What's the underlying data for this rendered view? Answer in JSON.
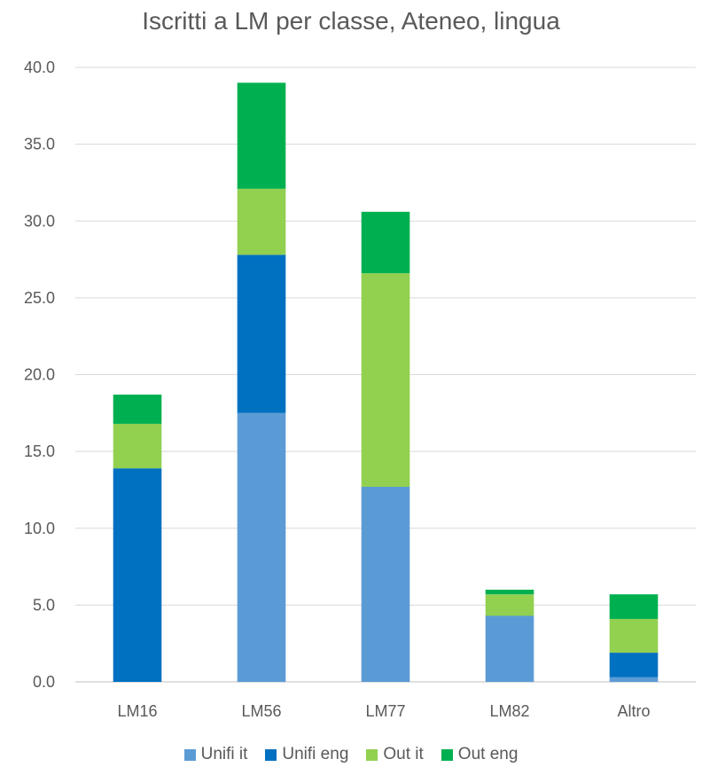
{
  "chart_data": {
    "type": "bar",
    "stacked": true,
    "title": "Iscritti a LM per classe, Ateneo, lingua",
    "xlabel": "",
    "ylabel": "",
    "ylim": [
      0,
      40
    ],
    "yticks": [
      "0.0",
      "5.0",
      "10.0",
      "15.0",
      "20.0",
      "25.0",
      "30.0",
      "35.0",
      "40.0"
    ],
    "grid": true,
    "legend_position": "bottom",
    "categories": [
      "LM16",
      "LM56",
      "LM77",
      "LM82",
      "Altro"
    ],
    "series": [
      {
        "name": "Unifi it",
        "color": "#5b9bd5",
        "values": [
          0.0,
          17.5,
          12.7,
          4.3,
          0.3
        ]
      },
      {
        "name": "Unifi eng",
        "color": "#0070c0",
        "values": [
          13.9,
          10.3,
          0.0,
          0.0,
          1.6
        ]
      },
      {
        "name": "Out it",
        "color": "#92d050",
        "values": [
          2.9,
          4.3,
          13.9,
          1.4,
          2.2
        ]
      },
      {
        "name": "Out eng",
        "color": "#00b050",
        "values": [
          1.9,
          6.9,
          4.0,
          0.3,
          1.6
        ]
      }
    ]
  }
}
